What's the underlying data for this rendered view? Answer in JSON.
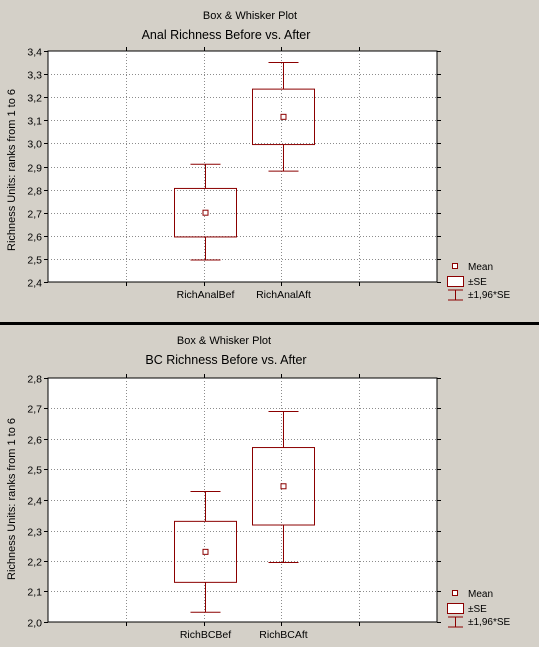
{
  "chart_data": [
    {
      "type": "box",
      "plot_type_label": "Box & Whisker Plot",
      "title": "Anal Richness Before vs. After",
      "ylabel": "Richness Units: ranks from 1 to 6",
      "ylim": [
        2.4,
        3.4
      ],
      "ytick_values": [
        2.4,
        2.5,
        2.6,
        2.7,
        2.8,
        2.9,
        3.0,
        3.1,
        3.2,
        3.3,
        3.4
      ],
      "ytick_labels": [
        "2,4",
        "2,5",
        "2,6",
        "2,7",
        "2,8",
        "2,9",
        "3,0",
        "3,1",
        "3,2",
        "3,3",
        "3,4"
      ],
      "categories": [
        "RichAnalBef",
        "RichAnalAft"
      ],
      "mean": [
        2.7,
        3.115
      ],
      "se_low": [
        2.595,
        2.995
      ],
      "se_high": [
        2.805,
        3.235
      ],
      "ci_low": [
        2.495,
        2.88
      ],
      "ci_high": [
        2.91,
        3.35
      ],
      "grid": true,
      "legend_position": "bottom-right",
      "legend": [
        "Mean",
        "±SE",
        "±1,96*SE"
      ],
      "colors": {
        "box": "#8b0000",
        "grid": "#8c8c8c",
        "plot_bg": "#ffffff",
        "text": "#000000"
      }
    },
    {
      "type": "box",
      "plot_type_label": "Box & Whisker Plot",
      "title": "BC Richness Before vs. After",
      "ylabel": "Richness Units: ranks from 1 to 6",
      "ylim": [
        2.0,
        2.8
      ],
      "ytick_values": [
        2.0,
        2.1,
        2.2,
        2.3,
        2.4,
        2.5,
        2.6,
        2.7,
        2.8
      ],
      "ytick_labels": [
        "2,0",
        "2,1",
        "2,2",
        "2,3",
        "2,4",
        "2,5",
        "2,6",
        "2,7",
        "2,8"
      ],
      "categories": [
        "RichBCBef",
        "RichBCAft"
      ],
      "mean": [
        2.23,
        2.445
      ],
      "se_low": [
        2.13,
        2.318
      ],
      "se_high": [
        2.33,
        2.572
      ],
      "ci_low": [
        2.032,
        2.195
      ],
      "ci_high": [
        2.428,
        2.69
      ],
      "grid": true,
      "legend_position": "bottom-right",
      "legend": [
        "Mean",
        "±SE",
        "±1,96*SE"
      ],
      "colors": {
        "box": "#8b0000",
        "grid": "#8c8c8c",
        "plot_bg": "#ffffff",
        "text": "#000000"
      }
    }
  ]
}
